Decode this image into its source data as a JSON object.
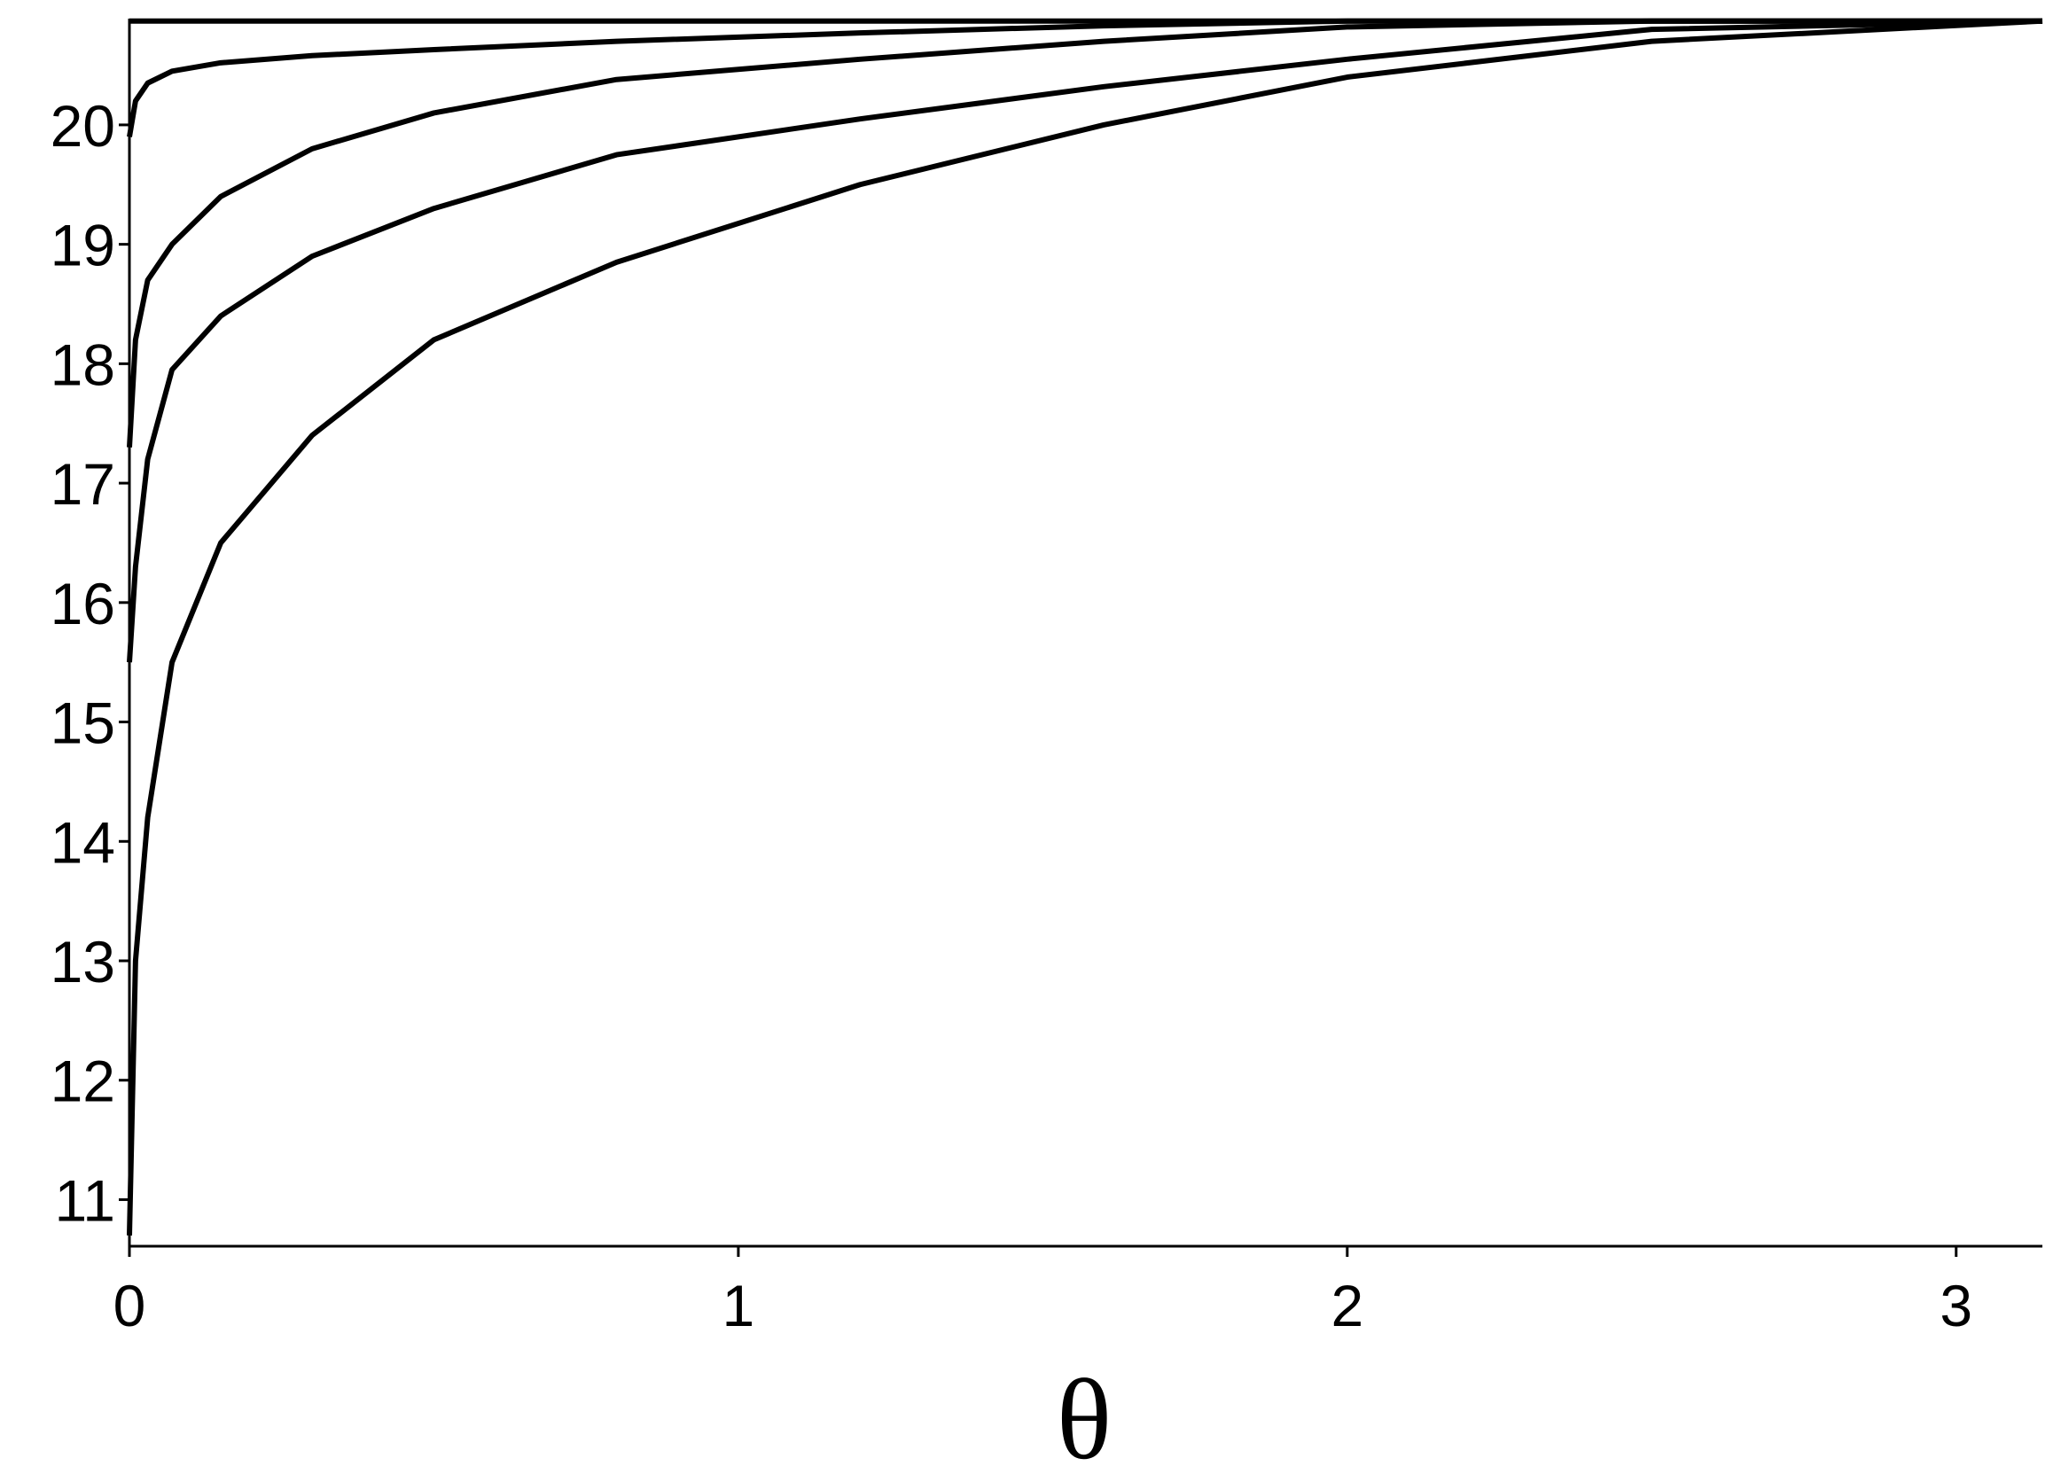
{
  "chart_data": {
    "type": "line",
    "x_label": "θ",
    "x": [
      0,
      0.01,
      0.03,
      0.07,
      0.15,
      0.3,
      0.5,
      0.8,
      1.2,
      1.6,
      2.0,
      2.5,
      3.1416
    ],
    "series": [
      {
        "color": "#000000",
        "values": [
          20.87,
          20.87,
          20.87,
          20.87,
          20.87,
          20.87,
          20.87,
          20.87,
          20.87,
          20.87,
          20.87,
          20.87,
          20.87
        ]
      },
      {
        "color": "#000000",
        "values": [
          19.9,
          20.2,
          20.35,
          20.45,
          20.52,
          20.58,
          20.63,
          20.7,
          20.77,
          20.83,
          20.87,
          20.87,
          20.87
        ]
      },
      {
        "color": "#000000",
        "values": [
          17.3,
          18.2,
          18.7,
          19.0,
          19.4,
          19.8,
          20.1,
          20.38,
          20.55,
          20.7,
          20.82,
          20.87,
          20.87
        ]
      },
      {
        "color": "#000000",
        "values": [
          15.5,
          16.3,
          17.2,
          17.95,
          18.4,
          18.9,
          19.3,
          19.75,
          20.05,
          20.32,
          20.55,
          20.8,
          20.87
        ]
      },
      {
        "color": "#000000",
        "values": [
          10.7,
          13.0,
          14.2,
          15.5,
          16.5,
          17.4,
          18.2,
          18.85,
          19.5,
          20.0,
          20.4,
          20.7,
          20.87
        ]
      }
    ],
    "xlim": [
      0,
      3.1416
    ],
    "ylim": [
      10.61,
      20.89
    ],
    "xticks": [
      0,
      1,
      2,
      3
    ],
    "yticks": [
      11,
      12,
      13,
      14,
      15,
      16,
      17,
      18,
      19,
      20
    ]
  }
}
